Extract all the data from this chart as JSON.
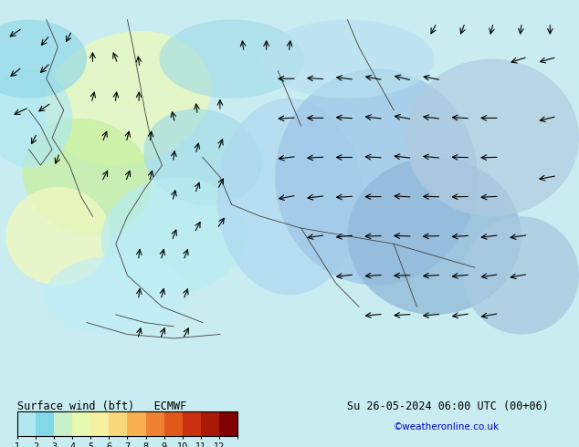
{
  "title_left": "Surface wind (bft)   ECMWF",
  "title_right": "Su 26-05-2024 06:00 UTC (00+06)",
  "credit": "©weatheronline.co.uk",
  "colorbar_values": [
    1,
    2,
    3,
    4,
    5,
    6,
    7,
    8,
    9,
    10,
    11,
    12
  ],
  "colorbar_colors": [
    "#b0e8f0",
    "#80d8e8",
    "#c8f0c8",
    "#e8f8b0",
    "#f8f0a0",
    "#f8d878",
    "#f8b050",
    "#f08030",
    "#e05818",
    "#c83010",
    "#a81808",
    "#800000"
  ],
  "bg_color": "#e8f8f8",
  "font_color_left": "#000000",
  "font_color_right": "#000000",
  "credit_color": "#0000cc",
  "map_bg": "#c8f0f8",
  "figsize": [
    6.34,
    4.9
  ],
  "dpi": 100
}
